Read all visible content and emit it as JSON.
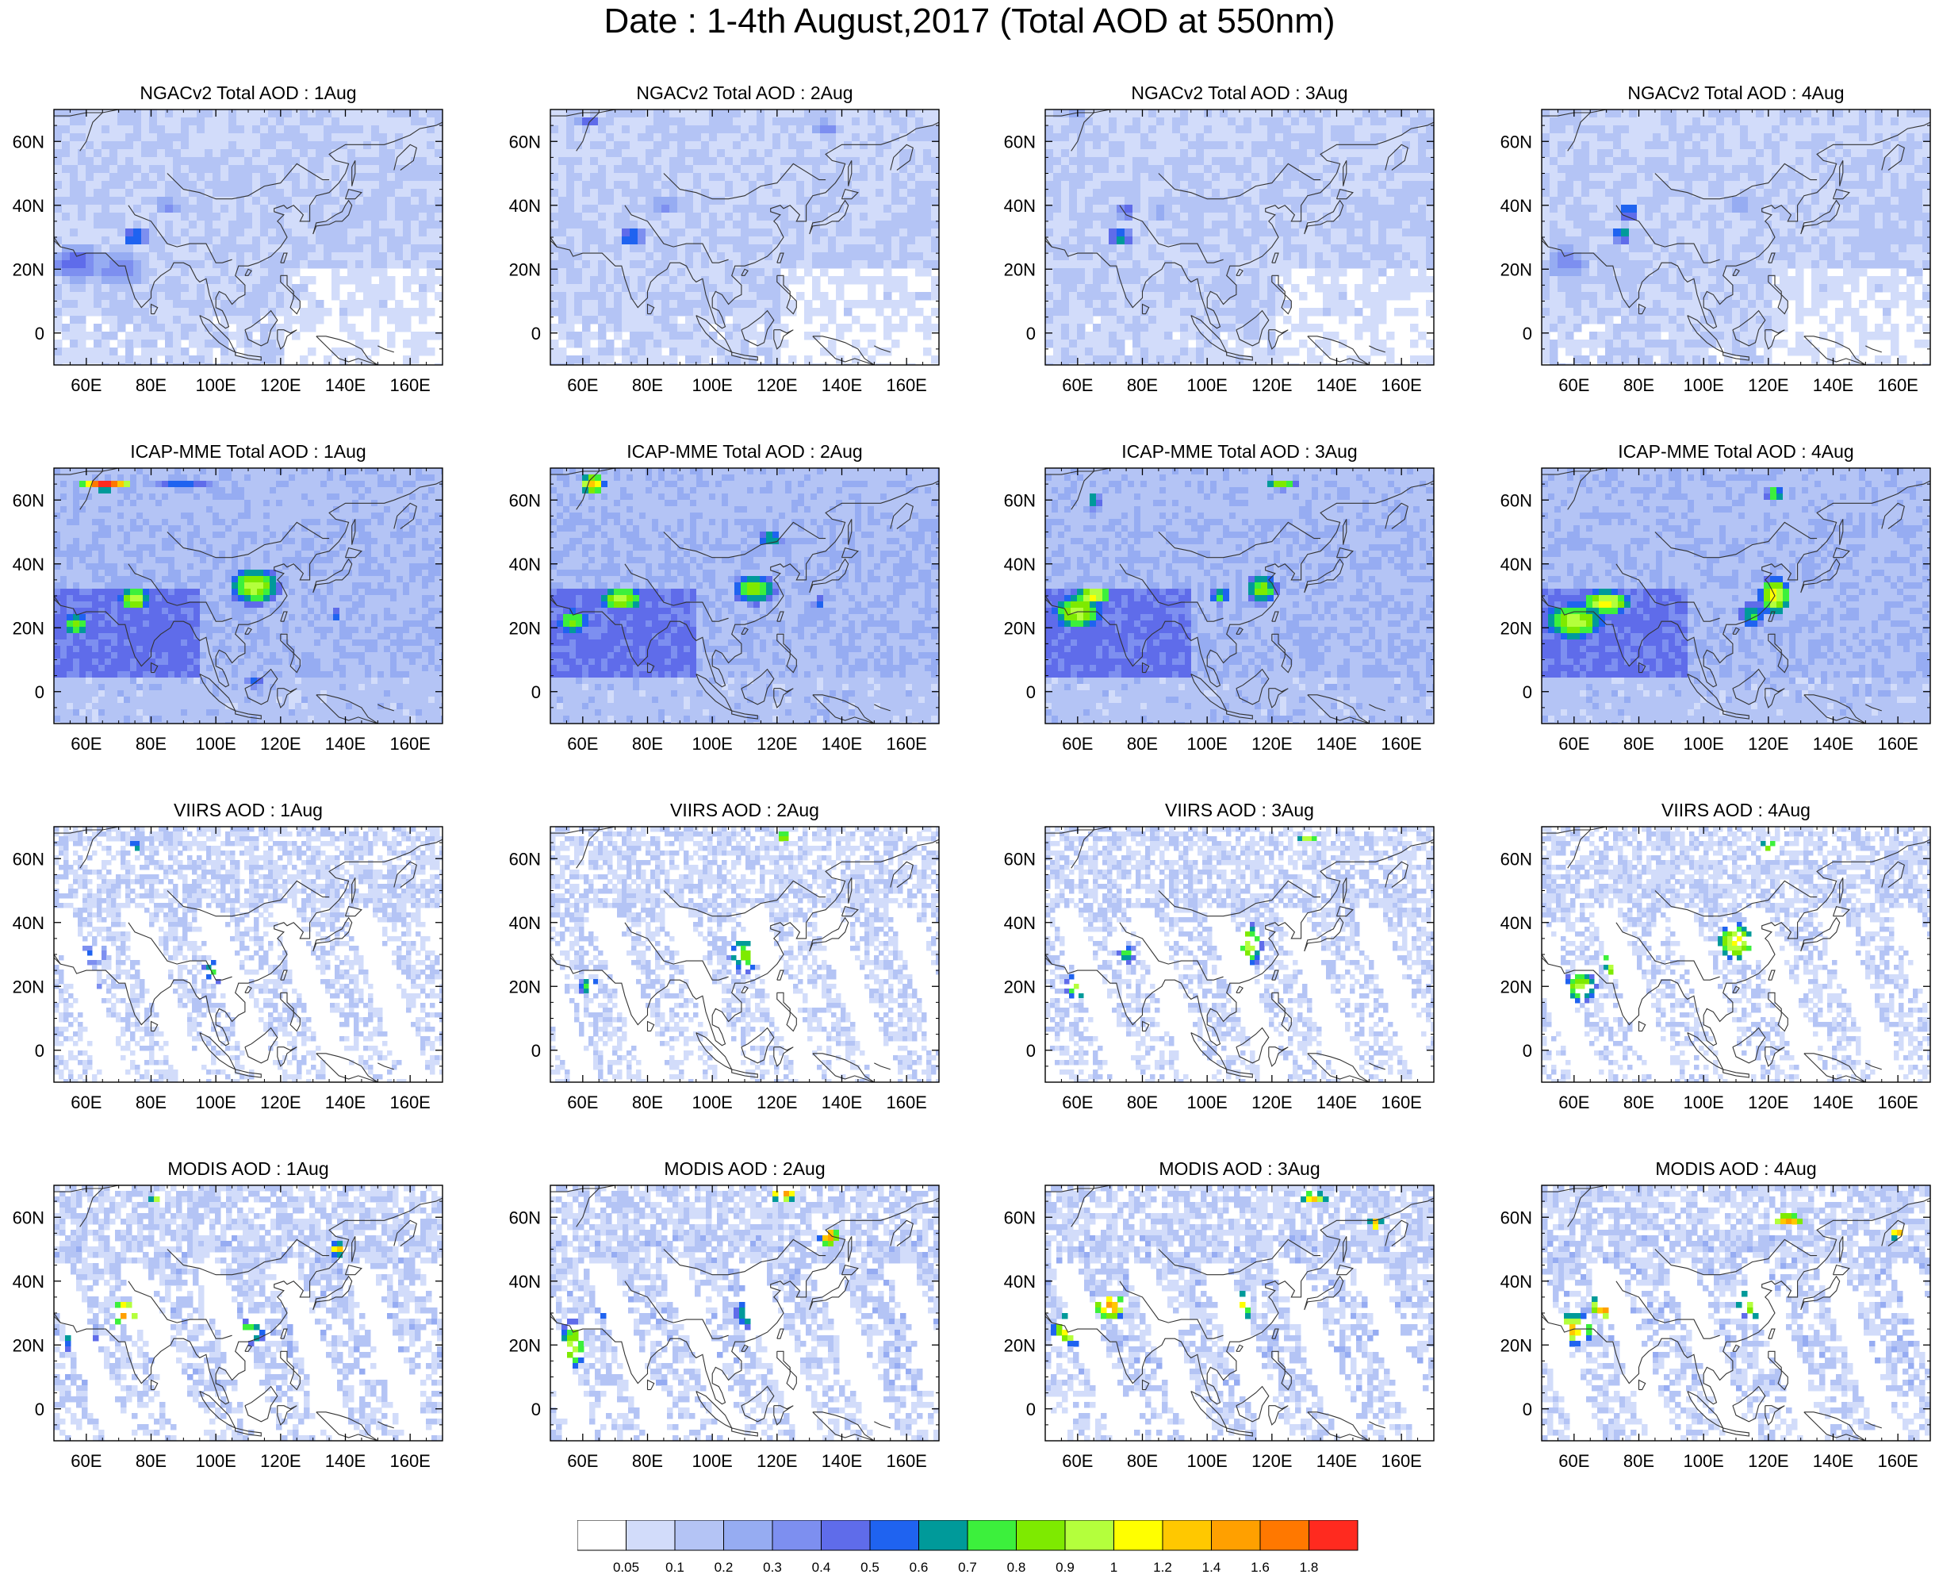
{
  "title": "Date : 1-4th August,2017 (Total AOD at 550nm)",
  "lon_labels": [
    "60E",
    "80E",
    "100E",
    "120E",
    "140E",
    "160E"
  ],
  "lat_labels": [
    "60N",
    "40N",
    "20N",
    "0"
  ],
  "colorbar": {
    "labels": [
      "0.05",
      "0.1",
      "0.2",
      "0.3",
      "0.4",
      "0.5",
      "0.6",
      "0.7",
      "0.8",
      "0.9",
      "1",
      "1.2",
      "1.4",
      "1.6",
      "1.8"
    ],
    "colors": [
      "#ffffff",
      "#d2dcfa",
      "#b4c4f5",
      "#96acf2",
      "#7d8ff0",
      "#5f6cea",
      "#1f63f0",
      "#009a9a",
      "#3cf03c",
      "#7eea00",
      "#b4ff3c",
      "#ffff00",
      "#ffc800",
      "#ffa000",
      "#ff7800",
      "#ff2a1f"
    ]
  },
  "rows": [
    {
      "model": "NGACv2",
      "titles": [
        "NGACv2 Total AOD : 1Aug",
        "NGACv2 Total AOD : 2Aug",
        "NGACv2 Total AOD : 3Aug",
        "NGACv2 Total AOD : 4Aug"
      ]
    },
    {
      "model": "ICAP-MME",
      "titles": [
        "ICAP-MME Total AOD : 1Aug",
        "ICAP-MME Total AOD : 2Aug",
        "ICAP-MME Total AOD : 3Aug",
        "ICAP-MME Total AOD : 4Aug"
      ]
    },
    {
      "model": "VIIRS",
      "titles": [
        "VIIRS AOD : 1Aug",
        "VIIRS AOD : 2Aug",
        "VIIRS AOD : 3Aug",
        "VIIRS AOD : 4Aug"
      ]
    },
    {
      "model": "MODIS",
      "titles": [
        "MODIS AOD : 1Aug",
        "MODIS AOD : 2Aug",
        "MODIS AOD : 3Aug",
        "MODIS AOD : 4Aug"
      ]
    }
  ]
}
